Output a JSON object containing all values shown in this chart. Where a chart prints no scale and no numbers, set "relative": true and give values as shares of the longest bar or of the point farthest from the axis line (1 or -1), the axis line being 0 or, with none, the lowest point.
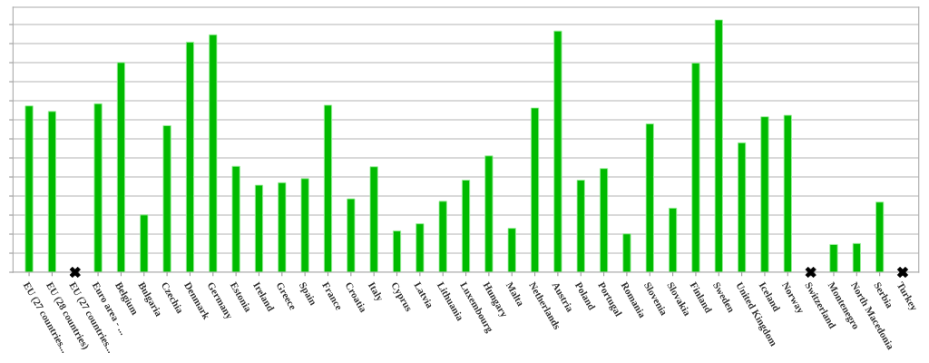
{
  "chart_data": {
    "type": "bar",
    "relative": true,
    "grid": "y",
    "legend": false,
    "categories": [
      "EU (27 countries...",
      "EU (28 countries)",
      "EU (27 countries...",
      "Euro area - ...",
      "Belgium",
      "Bulgaria",
      "Czechia",
      "Denmark",
      "Germany",
      "Estonia",
      "Ireland",
      "Greece",
      "Spain",
      "France",
      "Croatia",
      "Italy",
      "Cyprus",
      "Latvia",
      "Lithuania",
      "Luxembourg",
      "Hungary",
      "Malta",
      "Netherlands",
      "Austria",
      "Poland",
      "Portugal",
      "Romania",
      "Slovenia",
      "Slovakia",
      "Finland",
      "Sweden",
      "United Kingdom",
      "Iceland",
      "Norway",
      "Switzerland",
      "Montenegro",
      "North Macedonia",
      "Serbia",
      "Turkey"
    ],
    "series": [
      {
        "color": "#00bb00",
        "values": [
          0.659,
          0.637,
          null,
          0.668,
          0.831,
          0.227,
          0.581,
          0.912,
          0.941,
          0.42,
          0.345,
          0.355,
          0.371,
          0.662,
          0.291,
          0.418,
          0.164,
          0.192,
          0.281,
          0.365,
          0.461,
          0.174,
          0.651,
          0.956,
          0.365,
          0.411,
          0.152,
          0.588,
          0.254,
          0.829,
          1,
          0.513,
          0.616,
          0.622,
          null,
          0.11,
          0.114,
          0.278,
          null
        ]
      },
      {
        "type": "scatter",
        "color": "#000000",
        "marker": "cross",
        "values": [
          null,
          null,
          0,
          null,
          null,
          null,
          null,
          null,
          null,
          null,
          null,
          null,
          null,
          null,
          null,
          null,
          null,
          null,
          null,
          null,
          null,
          null,
          null,
          null,
          null,
          null,
          null,
          null,
          null,
          null,
          null,
          null,
          null,
          null,
          0,
          null,
          null,
          null,
          0
        ]
      }
    ]
  }
}
